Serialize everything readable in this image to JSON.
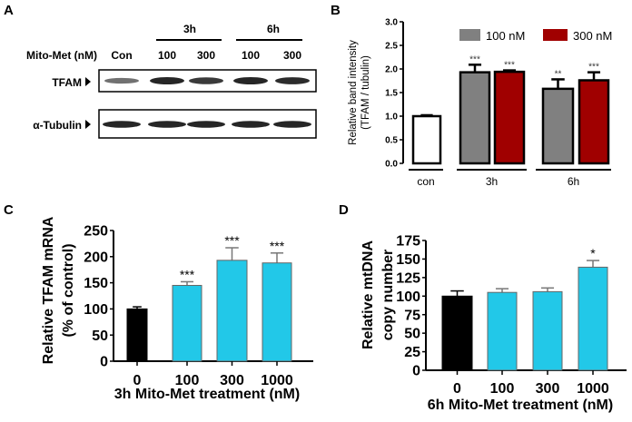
{
  "panel_labels": [
    "A",
    "B",
    "C",
    "D"
  ],
  "blot": {
    "treatment_label": "Mito-Met (nM)",
    "groups": [
      "3h",
      "6h"
    ],
    "lanes": [
      "Con",
      "100",
      "300",
      "100",
      "300"
    ],
    "rows": [
      "TFAM",
      "α-Tubulin"
    ],
    "colors": {
      "band": "#1a1a1a"
    }
  },
  "chart_data": [
    {
      "type": "bar",
      "panel": "B",
      "ylabel": [
        "Relative band intensity",
        "(TFAM / tubulin)"
      ],
      "ylim": [
        0,
        3.0
      ],
      "yticks": [
        "0.0",
        "0.5",
        "1.0",
        "1.5",
        "2.0",
        "2.5",
        "3.0"
      ],
      "group_labels": [
        "con",
        "3h",
        "6h"
      ],
      "legend": [
        {
          "name": "100 nM",
          "color": "#808080"
        },
        {
          "name": "300 nM",
          "color": "#a00000"
        }
      ],
      "legend_position": "top-right",
      "bars": [
        {
          "group": "con",
          "value": 1.0,
          "error": 0.02,
          "color": "#ffffff",
          "sig": ""
        },
        {
          "group": "3h",
          "series": "100 nM",
          "value": 1.93,
          "error": 0.16,
          "color": "#808080",
          "sig": "***"
        },
        {
          "group": "3h",
          "series": "300 nM",
          "value": 1.94,
          "error": 0.03,
          "color": "#a00000",
          "sig": "***"
        },
        {
          "group": "6h",
          "series": "100 nM",
          "value": 1.58,
          "error": 0.2,
          "color": "#808080",
          "sig": "**"
        },
        {
          "group": "6h",
          "series": "300 nM",
          "value": 1.76,
          "error": 0.17,
          "color": "#a00000",
          "sig": "***"
        }
      ]
    },
    {
      "type": "bar",
      "panel": "C",
      "ylabel": [
        "Relative TFAM mRNA",
        "(% of control)"
      ],
      "xlabel": "3h Mito-Met treatment (nM)",
      "ylim": [
        0,
        250
      ],
      "yticks": [
        "0",
        "50",
        "100",
        "150",
        "200",
        "250"
      ],
      "categories": [
        "0",
        "100",
        "300",
        "1000"
      ],
      "bars": [
        {
          "value": 100,
          "error": 4,
          "color": "#000000",
          "sig": ""
        },
        {
          "value": 145,
          "error": 7,
          "color": "#22c8e8",
          "sig": "***"
        },
        {
          "value": 193,
          "error": 24,
          "color": "#22c8e8",
          "sig": "***"
        },
        {
          "value": 188,
          "error": 19,
          "color": "#22c8e8",
          "sig": "***"
        }
      ]
    },
    {
      "type": "bar",
      "panel": "D",
      "ylabel": [
        "Relative mtDNA",
        "copy number"
      ],
      "xlabel": "6h Mito-Met treatment (nM)",
      "ylim": [
        0,
        175
      ],
      "yticks": [
        "0",
        "25",
        "50",
        "75",
        "100",
        "125",
        "150",
        "175"
      ],
      "categories": [
        "0",
        "100",
        "300",
        "1000"
      ],
      "bars": [
        {
          "value": 100,
          "error": 7,
          "color": "#000000",
          "sig": ""
        },
        {
          "value": 105,
          "error": 5,
          "color": "#22c8e8",
          "sig": ""
        },
        {
          "value": 106,
          "error": 5,
          "color": "#22c8e8",
          "sig": ""
        },
        {
          "value": 139,
          "error": 9,
          "color": "#22c8e8",
          "sig": "*"
        }
      ]
    }
  ]
}
